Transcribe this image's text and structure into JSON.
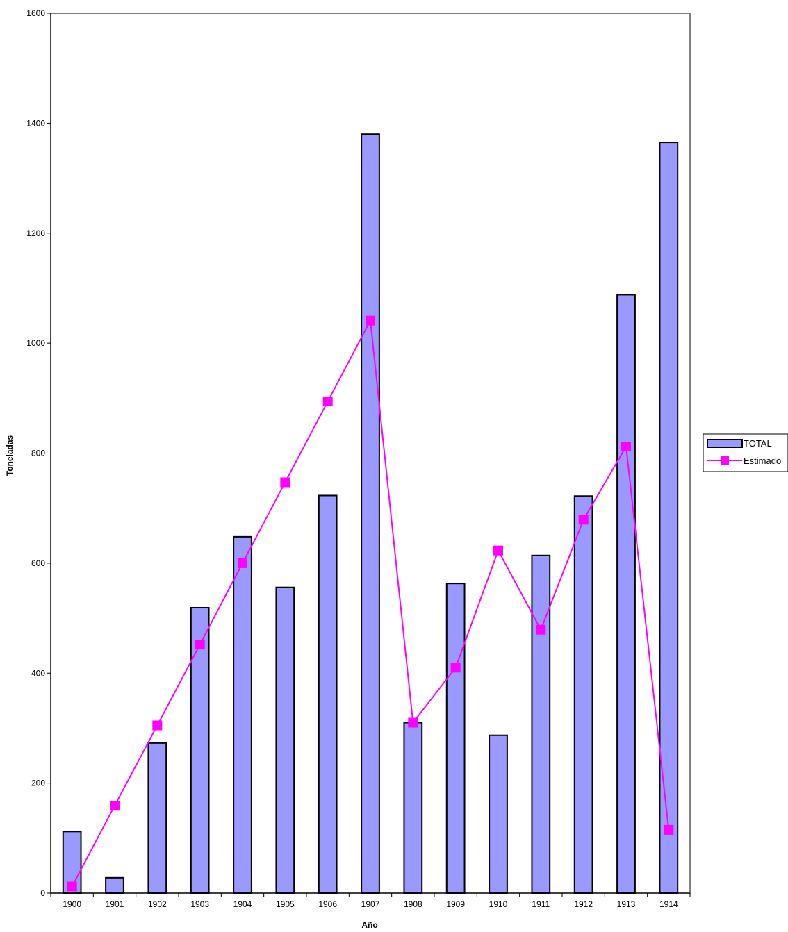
{
  "chart_data": {
    "type": "bar",
    "categories": [
      "1900",
      "1901",
      "1902",
      "1903",
      "1904",
      "1905",
      "1906",
      "1907",
      "1908",
      "1909",
      "1910",
      "1911",
      "1912",
      "1913",
      "1914"
    ],
    "series": [
      {
        "name": "TOTAL",
        "type": "bar",
        "color": "#9999ff",
        "values": [
          112,
          28,
          273,
          519,
          648,
          556,
          723,
          1380,
          310,
          563,
          287,
          614,
          722,
          1088,
          1365
        ]
      },
      {
        "name": "Estimado",
        "type": "line",
        "marker": "square",
        "color": "#ff00ff",
        "values": [
          12,
          159,
          305,
          452,
          600,
          747,
          894,
          1041,
          310,
          410,
          623,
          479,
          679,
          812,
          115
        ]
      }
    ],
    "xlabel": "Año",
    "ylabel": "Toneladas",
    "ylim": [
      0,
      1600
    ],
    "yticks": [
      0,
      200,
      400,
      600,
      800,
      1000,
      1200,
      1400,
      1600
    ],
    "grid": false,
    "legend": "right"
  }
}
